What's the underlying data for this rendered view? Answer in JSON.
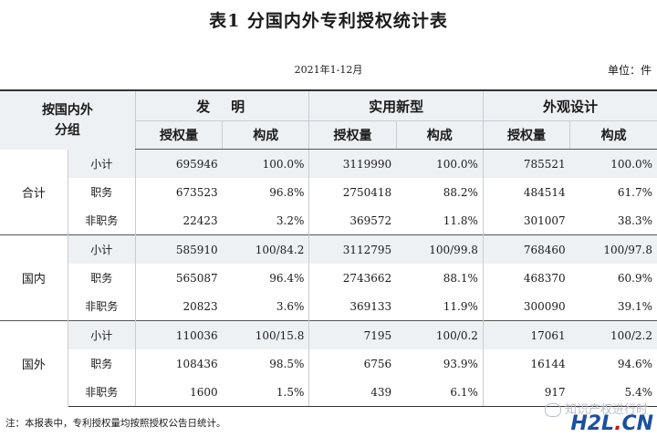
{
  "title": "表1    分国内外专利授权统计表",
  "period": "2021年1-12月",
  "unit": "单位：件",
  "header": {
    "corner_line1": "按国内外",
    "corner_line2": "分组",
    "groups": [
      "发　明",
      "实用新型",
      "外观设计"
    ],
    "sub": [
      "授权量",
      "构成"
    ]
  },
  "sections": [
    {
      "name": "合计",
      "rows": [
        {
          "label": "小计",
          "values": [
            "695946",
            "100.0%",
            "3119990",
            "100.0%",
            "785521",
            "100.0%"
          ]
        },
        {
          "label": "职务",
          "values": [
            "673523",
            "96.8%",
            "2750418",
            "88.2%",
            "484514",
            "61.7%"
          ]
        },
        {
          "label": "非职务",
          "values": [
            "22423",
            "3.2%",
            "369572",
            "11.8%",
            "301007",
            "38.3%"
          ]
        }
      ]
    },
    {
      "name": "国内",
      "rows": [
        {
          "label": "小计",
          "values": [
            "585910",
            "100/84.2",
            "3112795",
            "100/99.8",
            "768460",
            "100/97.8"
          ]
        },
        {
          "label": "职务",
          "values": [
            "565087",
            "96.4%",
            "2743662",
            "88.1%",
            "468370",
            "60.9%"
          ]
        },
        {
          "label": "非职务",
          "values": [
            "20823",
            "3.6%",
            "369133",
            "11.9%",
            "300090",
            "39.1%"
          ]
        }
      ]
    },
    {
      "name": "国外",
      "rows": [
        {
          "label": "小计",
          "values": [
            "110036",
            "100/15.8",
            "7195",
            "100/0.2",
            "17061",
            "100/2.2"
          ]
        },
        {
          "label": "职务",
          "values": [
            "108436",
            "98.5%",
            "6756",
            "93.9%",
            "16144",
            "94.6%"
          ]
        },
        {
          "label": "非职务",
          "values": [
            "1600",
            "1.5%",
            "439",
            "6.1%",
            "917",
            "5.4%"
          ]
        }
      ]
    }
  ],
  "note": "注：本报表中，专利授权量均按照授权公告日统计。",
  "watermark": "知识产权进行时",
  "logo": {
    "a": "H2L",
    "b": ".",
    "c": "CN"
  }
}
